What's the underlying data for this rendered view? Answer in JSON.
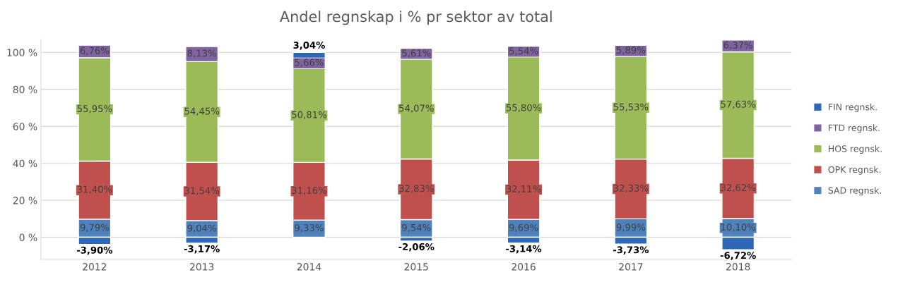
{
  "chart_data": {
    "type": "bar",
    "title": "Andel regnskap i % pr sektor av total",
    "stacked": true,
    "categories": [
      "2012",
      "2013",
      "2014",
      "2015",
      "2016",
      "2017",
      "2018"
    ],
    "series": [
      {
        "name": "SAD regnsk.",
        "color": "#4f81bd",
        "values": [
          9.79,
          9.04,
          9.33,
          9.54,
          9.69,
          9.99,
          10.1
        ],
        "value_labels": [
          "9,79%",
          "9,04%",
          "9,33%",
          "9,54%",
          "9,69%",
          "9,99%",
          "10,10%"
        ]
      },
      {
        "name": "OPK regnsk.",
        "color": "#c0504d",
        "values": [
          31.4,
          31.54,
          31.16,
          32.83,
          32.11,
          32.33,
          32.62
        ],
        "value_labels": [
          "31,40%",
          "31,54%",
          "31,16%",
          "32,83%",
          "32,11%",
          "32,33%",
          "32,62%"
        ]
      },
      {
        "name": "HOS regnsk.",
        "color": "#9bbb59",
        "values": [
          55.95,
          54.45,
          50.81,
          54.07,
          55.8,
          55.53,
          57.63
        ],
        "value_labels": [
          "55,95%",
          "54,45%",
          "50,81%",
          "54,07%",
          "55,80%",
          "55,53%",
          "57,63%"
        ]
      },
      {
        "name": "FTD regnsk.",
        "color": "#8064a2",
        "values": [
          6.76,
          8.13,
          5.66,
          5.61,
          5.54,
          5.89,
          6.37
        ],
        "value_labels": [
          "6,76%",
          "8,13%",
          "5,66%",
          "5,61%",
          "5,54%",
          "5,89%",
          "6,37%"
        ]
      },
      {
        "name": "FIN regnsk.",
        "color": "#2e66b8",
        "values": [
          -3.9,
          -3.17,
          3.04,
          -2.06,
          -3.14,
          -3.73,
          -6.72
        ],
        "value_labels": [
          "-3,90%",
          "-3,17%",
          "3,04%",
          "-2,06%",
          "-3,14%",
          "-3,73%",
          "-6,72%"
        ]
      }
    ],
    "ylim": [
      -12,
      107
    ],
    "yticks": [
      {
        "value": 0,
        "label": "0 %"
      },
      {
        "value": 20,
        "label": "20 %"
      },
      {
        "value": 40,
        "label": "40 %"
      },
      {
        "value": 60,
        "label": "60 %"
      },
      {
        "value": 80,
        "label": "80 %"
      },
      {
        "value": 100,
        "label": "100 %"
      }
    ],
    "grid": "y",
    "legend": "right"
  }
}
